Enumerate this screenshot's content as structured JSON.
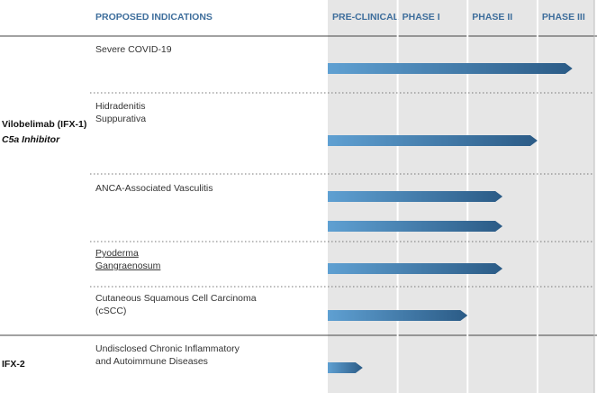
{
  "chart_data": {
    "type": "bar",
    "orientation": "horizontal",
    "ylabel": "PROPOSED INDICATIONS",
    "groups": [
      {
        "name": "Vilobelimab (IFX-1)",
        "subtitle": "C5a Inhibitor"
      },
      {
        "name": "IFX-2"
      }
    ],
    "categories": [
      [
        "Severe COVID-19"
      ],
      [
        "Hidradenitis",
        "Suppurativa"
      ],
      [
        "ANCA-Associated Vasculitis"
      ],
      null,
      [
        "Pyoderma",
        "Gangraenosum"
      ],
      [
        "Cutaneous Squamous Cell Carcinoma",
        "(cSCC)"
      ],
      [
        "Undisclosed Chronic Inflammatory",
        "and Autoimmune Diseases"
      ]
    ],
    "values": [
      3.5,
      3.0,
      2.5,
      2.5,
      2.5,
      2.0,
      0.5
    ],
    "color": "#3f7fb5",
    "xlim": [
      0,
      3.8
    ],
    "xticks": [
      {
        "value": 0,
        "label": "PRE-CLINICAL"
      },
      {
        "value": 1,
        "label": "PHASE I"
      },
      {
        "value": 2,
        "label": "PHASE II"
      },
      {
        "value": 3,
        "label": "PHASE III"
      }
    ],
    "grid": true
  }
}
